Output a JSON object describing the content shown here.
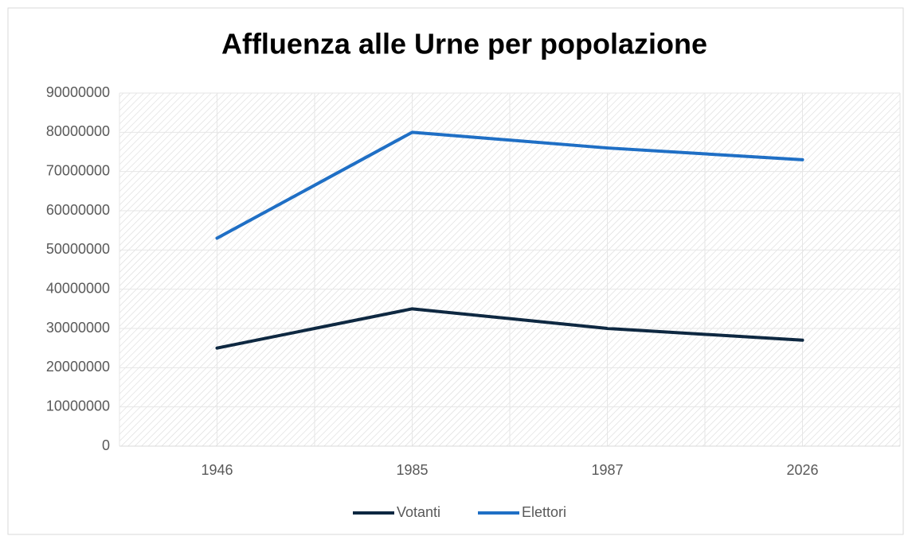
{
  "chart_data": {
    "type": "line",
    "title": "Affluenza alle Urne per popolazione",
    "categories": [
      "1946",
      "1985",
      "1987",
      "2026"
    ],
    "series": [
      {
        "name": "Votanti",
        "color": "#0e2841",
        "values": [
          25000000,
          35000000,
          30000000,
          27000000
        ]
      },
      {
        "name": "Elettori",
        "color": "#1f6fc5",
        "values": [
          53000000,
          80000000,
          76000000,
          73000000
        ]
      }
    ],
    "ylim": [
      0,
      90000000
    ],
    "yticks": [
      0,
      10000000,
      20000000,
      30000000,
      40000000,
      50000000,
      60000000,
      70000000,
      80000000,
      90000000
    ],
    "grid": true,
    "legend": "bottom"
  }
}
